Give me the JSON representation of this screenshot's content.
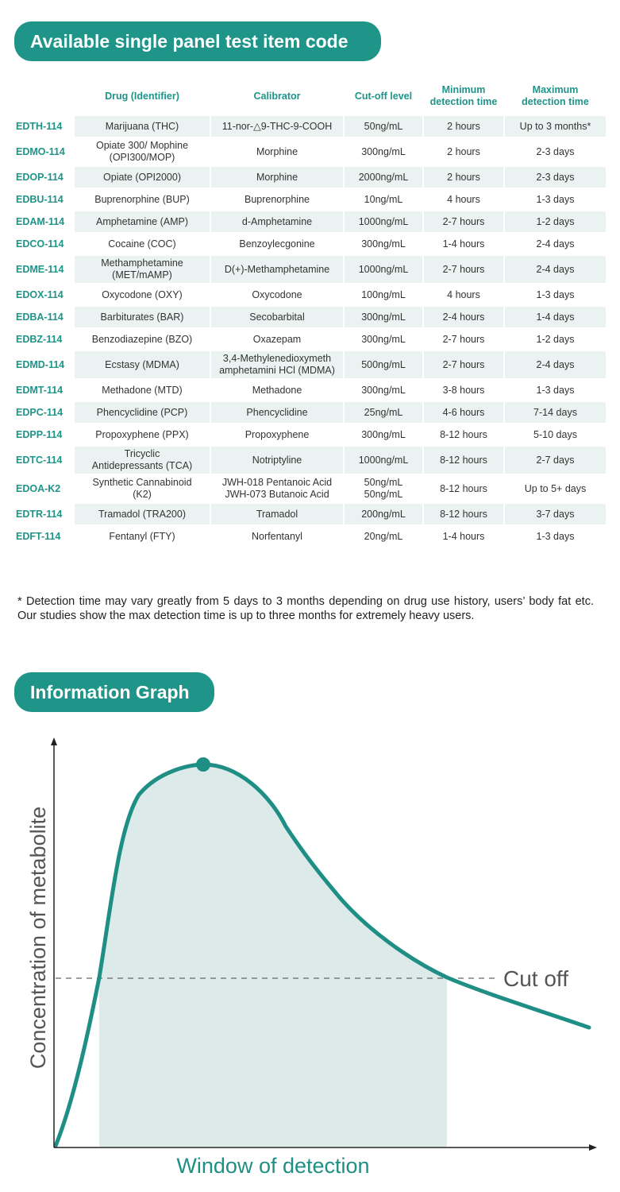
{
  "section1": {
    "title": "Available single panel test item code"
  },
  "table": {
    "headers": {
      "code": "",
      "drug": "Drug (Identifier)",
      "calibrator": "Calibrator",
      "cutoff": "Cut-off level",
      "min_line1": "Minimum",
      "min_line2": "detection time",
      "max_line1": "Maximum",
      "max_line2": "detection time"
    },
    "rows": [
      {
        "code": "EDTH-114",
        "drug": "Marijuana (THC)",
        "drug2": "",
        "cal": "11-nor-△9-THC-9-COOH",
        "cal2": "",
        "cut": "50ng/mL",
        "cut2": "",
        "min": "2 hours",
        "max": "Up to 3 months*"
      },
      {
        "code": "EDMO-114",
        "drug": "Opiate 300/ Mophine",
        "drug2": "(OPI300/MOP)",
        "cal": "Morphine",
        "cal2": "",
        "cut": "300ng/mL",
        "cut2": "",
        "min": "2 hours",
        "max": "2-3 days"
      },
      {
        "code": "EDOP-114",
        "drug": "Opiate (OPI2000)",
        "drug2": "",
        "cal": "Morphine",
        "cal2": "",
        "cut": "2000ng/mL",
        "cut2": "",
        "min": "2 hours",
        "max": "2-3 days"
      },
      {
        "code": "EDBU-114",
        "drug": "Buprenorphine (BUP)",
        "drug2": "",
        "cal": "Buprenorphine",
        "cal2": "",
        "cut": "10ng/mL",
        "cut2": "",
        "min": "4 hours",
        "max": "1-3 days"
      },
      {
        "code": "EDAM-114",
        "drug": "Amphetamine (AMP)",
        "drug2": "",
        "cal": "d-Amphetamine",
        "cal2": "",
        "cut": "1000ng/mL",
        "cut2": "",
        "min": "2-7 hours",
        "max": "1-2 days"
      },
      {
        "code": "EDCO-114",
        "drug": "Cocaine (COC)",
        "drug2": "",
        "cal": "Benzoylecgonine",
        "cal2": "",
        "cut": "300ng/mL",
        "cut2": "",
        "min": "1-4 hours",
        "max": "2-4 days"
      },
      {
        "code": "EDME-114",
        "drug": "Methamphetamine",
        "drug2": "(MET/mAMP)",
        "cal": "D(+)-Methamphetamine",
        "cal2": "",
        "cut": "1000ng/mL",
        "cut2": "",
        "min": "2-7 hours",
        "max": "2-4 days"
      },
      {
        "code": "EDOX-114",
        "drug": "Oxycodone (OXY)",
        "drug2": "",
        "cal": "Oxycodone",
        "cal2": "",
        "cut": "100ng/mL",
        "cut2": "",
        "min": "4 hours",
        "max": "1-3 days"
      },
      {
        "code": "EDBA-114",
        "drug": "Barbiturates (BAR)",
        "drug2": "",
        "cal": "Secobarbital",
        "cal2": "",
        "cut": "300ng/mL",
        "cut2": "",
        "min": "2-4 hours",
        "max": "1-4 days"
      },
      {
        "code": "EDBZ-114",
        "drug": "Benzodiazepine (BZO)",
        "drug2": "",
        "cal": "Oxazepam",
        "cal2": "",
        "cut": "300ng/mL",
        "cut2": "",
        "min": "2-7 hours",
        "max": "1-2 days"
      },
      {
        "code": "EDMD-114",
        "drug": "Ecstasy (MDMA)",
        "drug2": "",
        "cal": "3,4-Methylenedioxymeth",
        "cal2": "amphetamini HCl (MDMA)",
        "cut": "500ng/mL",
        "cut2": "",
        "min": "2-7 hours",
        "max": "2-4 days"
      },
      {
        "code": "EDMT-114",
        "drug": "Methadone (MTD)",
        "drug2": "",
        "cal": "Methadone",
        "cal2": "",
        "cut": "300ng/mL",
        "cut2": "",
        "min": "3-8 hours",
        "max": "1-3 days"
      },
      {
        "code": "EDPC-114",
        "drug": "Phencyclidine (PCP)",
        "drug2": "",
        "cal": "Phencyclidine",
        "cal2": "",
        "cut": "25ng/mL",
        "cut2": "",
        "min": "4-6 hours",
        "max": "7-14 days"
      },
      {
        "code": "EDPP-114",
        "drug": "Propoxyphene (PPX)",
        "drug2": "",
        "cal": "Propoxyphene",
        "cal2": "",
        "cut": "300ng/mL",
        "cut2": "",
        "min": "8-12 hours",
        "max": "5-10 days"
      },
      {
        "code": "EDTC-114",
        "drug": "Tricyclic",
        "drug2": "Antidepressants (TCA)",
        "cal": "Notriptyline",
        "cal2": "",
        "cut": "1000ng/mL",
        "cut2": "",
        "min": "8-12 hours",
        "max": "2-7 days"
      },
      {
        "code": "EDOA-K2",
        "drug": "Synthetic Cannabinoid",
        "drug2": "(K2)",
        "cal": "JWH-018 Pentanoic Acid",
        "cal2": "JWH-073 Butanoic Acid",
        "cut": "50ng/mL",
        "cut2": "50ng/mL",
        "min": "8-12 hours",
        "max": "Up to 5+ days"
      },
      {
        "code": "EDTR-114",
        "drug": "Tramadol (TRA200)",
        "drug2": "",
        "cal": "Tramadol",
        "cal2": "",
        "cut": "200ng/mL",
        "cut2": "",
        "min": "8-12 hours",
        "max": "3-7 days"
      },
      {
        "code": "EDFT-114",
        "drug": "Fentanyl (FTY)",
        "drug2": "",
        "cal": "Norfentanyl",
        "cal2": "",
        "cut": "20ng/mL",
        "cut2": "",
        "min": "1-4 hours",
        "max": "1-3 days"
      }
    ]
  },
  "footnote": "* Detection time may vary greatly from 5 days to 3 months depending on drug use history, users’ body fat etc. Our studies show the max detection time is up to three months for extremely heavy users.",
  "section2": {
    "title": "Information Graph"
  },
  "graph": {
    "ylabel": "Concentration of metabolite",
    "xlabel": "Window of detection",
    "cutoff_label": "Cut off",
    "colors": {
      "curve": "#1f8f85",
      "fill": "#dcebe9",
      "axis": "#222222",
      "dash": "#666666",
      "text": "#1f8f85",
      "cutoff_text": "#555555"
    }
  }
}
